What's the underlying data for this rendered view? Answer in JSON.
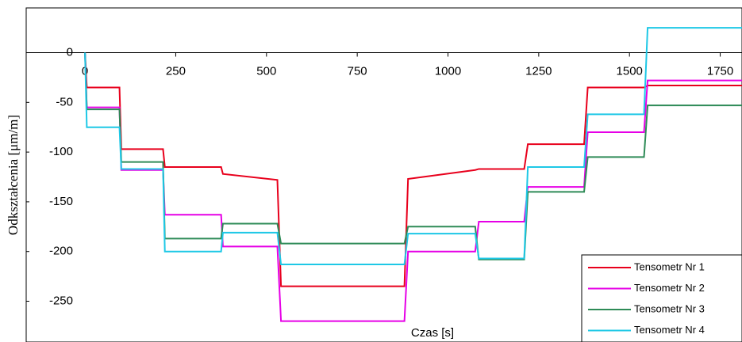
{
  "chart_data": {
    "type": "line",
    "x_label": "Czas [s]",
    "y_label": "Odkształcenia [μm/m]",
    "x": [
      0,
      5,
      95,
      100,
      215,
      220,
      375,
      380,
      530,
      540,
      880,
      890,
      1075,
      1085,
      1210,
      1220,
      1375,
      1385,
      1540,
      1550,
      1810
    ],
    "series": [
      {
        "name": "Tensometr Nr 1",
        "color": "#e8001c",
        "values": [
          0,
          -35,
          -35,
          -97,
          -97,
          -115,
          -115,
          -122,
          -128,
          -235,
          -235,
          -127,
          -118,
          -117,
          -117,
          -92,
          -92,
          -35,
          -35,
          -33,
          -33
        ]
      },
      {
        "name": "Tensometr Nr 2",
        "color": "#e600e6",
        "values": [
          0,
          -55,
          -55,
          -118,
          -118,
          -163,
          -163,
          -195,
          -195,
          -270,
          -270,
          -200,
          -200,
          -170,
          -170,
          -135,
          -135,
          -80,
          -80,
          -28,
          -28
        ]
      },
      {
        "name": "Tensometr Nr 3",
        "color": "#2e8b57",
        "values": [
          0,
          -57,
          -57,
          -110,
          -110,
          -187,
          -187,
          -172,
          -172,
          -192,
          -192,
          -175,
          -175,
          -208,
          -208,
          -140,
          -140,
          -105,
          -105,
          -53,
          -53
        ]
      },
      {
        "name": "Tensometr Nr 4",
        "color": "#1ec8e6",
        "values": [
          0,
          -75,
          -75,
          -117,
          -117,
          -200,
          -200,
          -181,
          -181,
          -213,
          -213,
          -182,
          -182,
          -207,
          -207,
          -115,
          -115,
          -62,
          -62,
          25,
          25
        ]
      }
    ],
    "xlim": [
      -162,
      1810
    ],
    "ylim": [
      -291,
      45
    ],
    "xticks": [
      0,
      250,
      500,
      750,
      1000,
      1250,
      1500,
      1750
    ],
    "yticks": [
      -250,
      -200,
      -150,
      -100,
      -50,
      0
    ],
    "grid": false,
    "legend": "lower right"
  }
}
